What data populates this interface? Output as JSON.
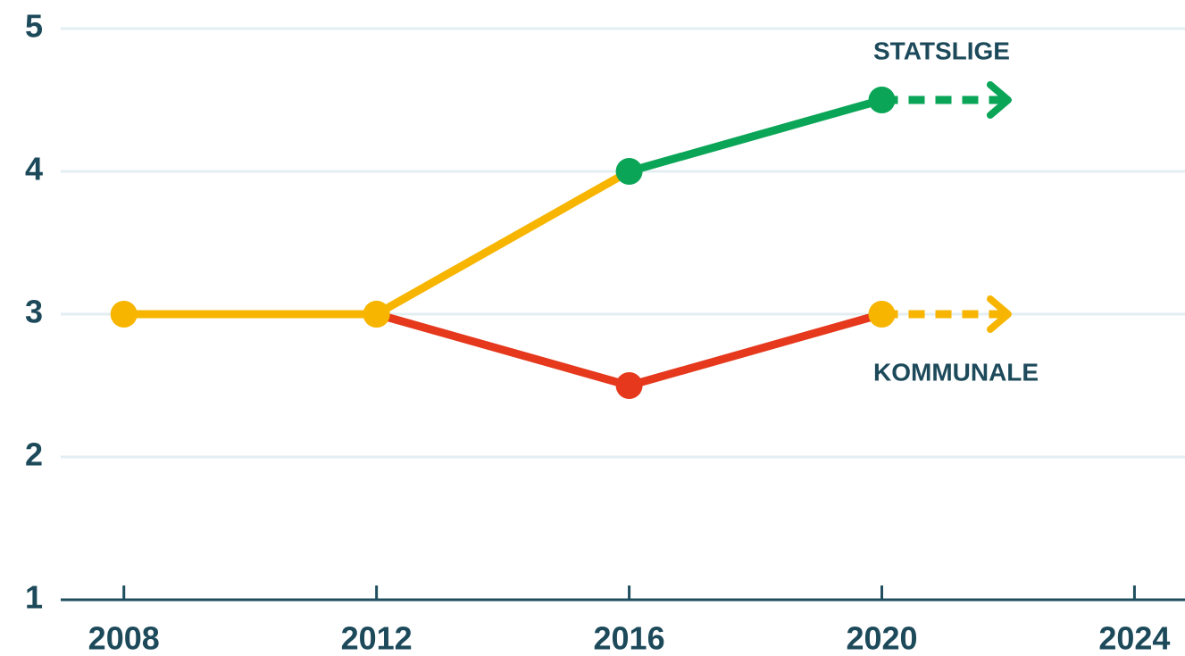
{
  "chart_data": {
    "type": "line",
    "xlim": [
      2007,
      2024.8
    ],
    "xticks": [
      2008,
      2012,
      2016,
      2020,
      2024
    ],
    "ylim": [
      1,
      5
    ],
    "yticks": [
      1,
      2,
      3,
      4,
      5
    ],
    "grid": true,
    "series": [
      {
        "name": "STATSLIGE",
        "x": [
          2008,
          2012,
          2016,
          2020
        ],
        "values": [
          3,
          3,
          4,
          4.5
        ],
        "point_colors": [
          "#f7b500",
          "#f7b500",
          "#0aa557",
          "#0aa557"
        ],
        "segment_colors": [
          "#f7b500",
          "#f7b500",
          "#0aa557"
        ],
        "projection": {
          "x": [
            2020,
            2022
          ],
          "values": [
            4.5,
            4.5
          ],
          "color": "#0aa557"
        }
      },
      {
        "name": "KOMMUNALE",
        "x": [
          2012,
          2016,
          2020
        ],
        "values": [
          3,
          2.5,
          3
        ],
        "point_colors": [
          "#f7b500",
          "#e5381c",
          "#f7b500"
        ],
        "segment_colors": [
          "#e5381c",
          "#e5381c"
        ],
        "projection": {
          "x": [
            2020,
            2022
          ],
          "values": [
            3,
            3
          ],
          "color": "#f7b500"
        }
      }
    ]
  }
}
